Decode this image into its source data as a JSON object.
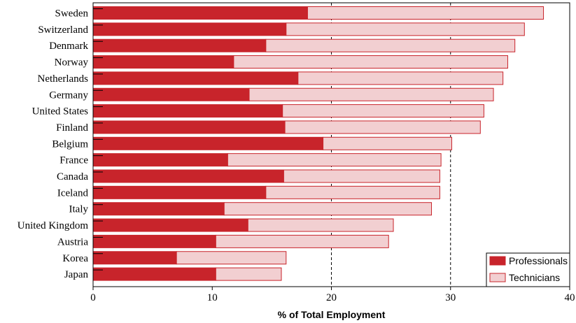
{
  "chart_data": {
    "type": "bar",
    "orientation": "horizontal",
    "stacked": true,
    "categories": [
      "Sweden",
      "Switzerland",
      "Denmark",
      "Norway",
      "Netherlands",
      "Germany",
      "United States",
      "Finland",
      "Belgium",
      "France",
      "Canada",
      "Iceland",
      "Italy",
      "United Kingdom",
      "Austria",
      "Korea",
      "Japan"
    ],
    "series": [
      {
        "name": "Professionals",
        "color": "#c8242b",
        "values": [
          18.0,
          16.2,
          14.5,
          11.8,
          17.2,
          13.1,
          15.9,
          16.1,
          19.3,
          11.3,
          16.0,
          14.5,
          11.0,
          13.0,
          10.3,
          7.0,
          10.3
        ]
      },
      {
        "name": "Technicians",
        "color": "#f2cfd1",
        "values": [
          19.8,
          20.0,
          20.9,
          23.0,
          17.2,
          20.5,
          16.9,
          16.4,
          10.8,
          17.9,
          13.1,
          14.6,
          17.4,
          12.2,
          14.5,
          9.2,
          5.5
        ]
      }
    ],
    "xlabel": "% of Total Employment",
    "xlim": [
      0,
      40
    ],
    "xticks": [
      "0",
      "10",
      "20",
      "30",
      "40"
    ],
    "gridlines": "dashed at 20 and 30",
    "legend_position": "bottom-right"
  }
}
